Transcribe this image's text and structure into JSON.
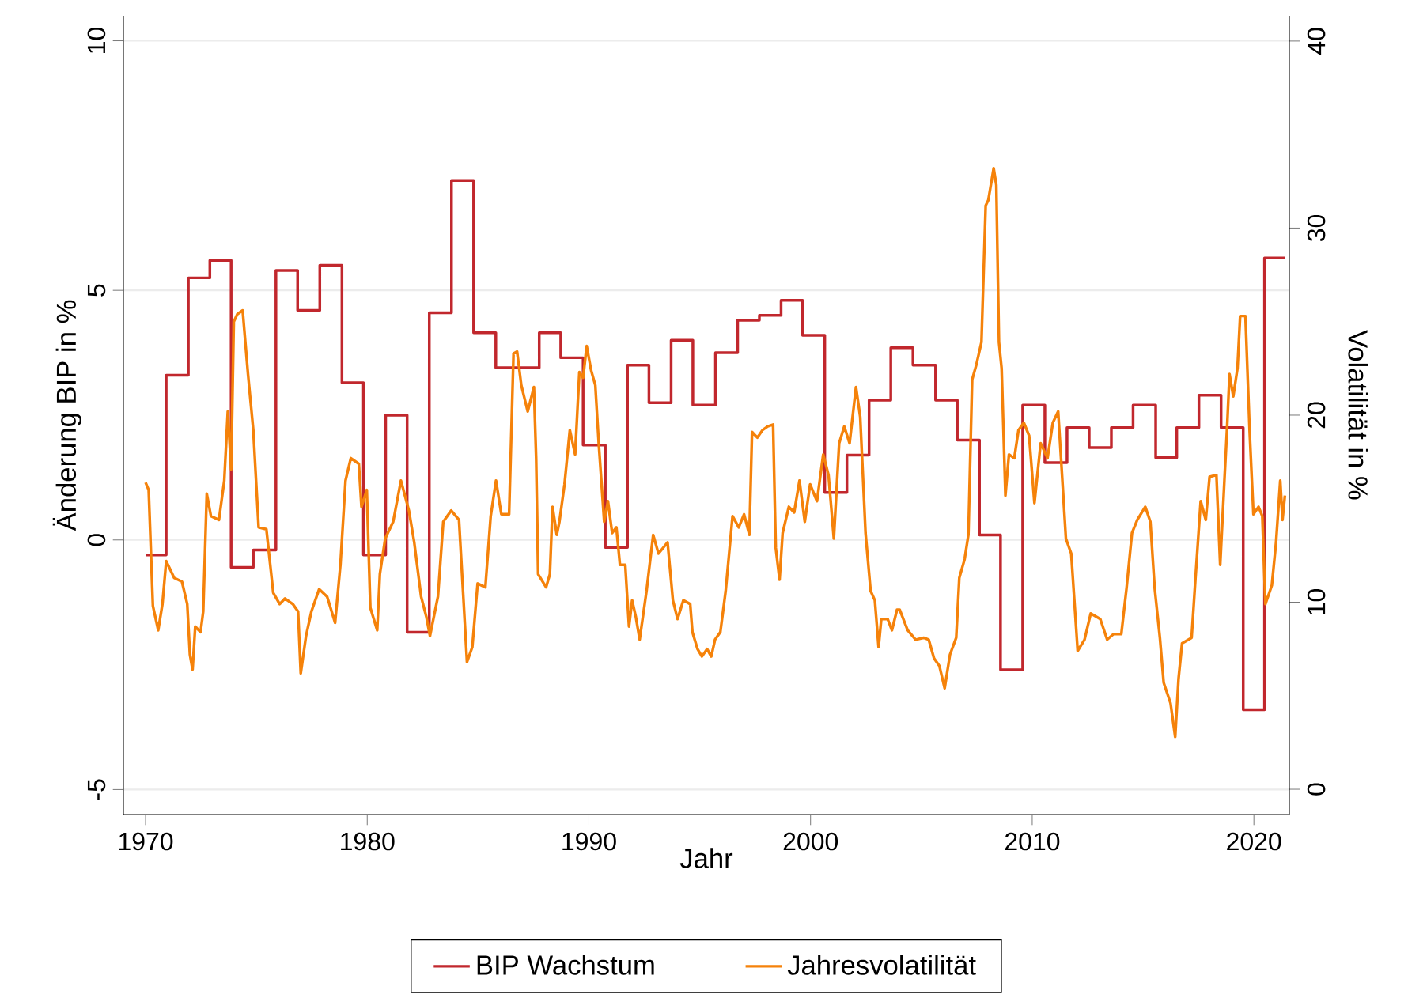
{
  "chart_data": {
    "type": "line",
    "xlabel": "Jahr",
    "ylabel": "Änderung BIP in %",
    "y2label": "Volatilität in %",
    "xlim": [
      1969,
      2021.6
    ],
    "ylim": [
      -5.5,
      10.5
    ],
    "y2lim": [
      -1.35,
      41.35
    ],
    "xticks": [
      1970,
      1980,
      1990,
      2000,
      2010,
      2020
    ],
    "yticks": [
      -5,
      0,
      5,
      10
    ],
    "y2ticks": [
      0,
      10,
      20,
      30,
      40
    ],
    "grid": "y",
    "legend": "bottom",
    "marker": "none",
    "line_style": "solid",
    "series": [
      {
        "name": "BIP Wachstum",
        "type": "step",
        "color": "#c1272d",
        "x": [
          1970.0,
          1970.93,
          1971.93,
          1972.9,
          1973.86,
          1974.86,
          1975.88,
          1976.86,
          1977.86,
          1978.86,
          1979.83,
          1980.83,
          1981.8,
          1982.8,
          1983.8,
          1984.8,
          1985.8,
          1987.76,
          1988.73,
          1989.74,
          1990.74,
          1991.74,
          1992.71,
          1993.71,
          1994.69,
          1995.71,
          1996.71,
          1997.69,
          1998.67,
          1999.64,
          2000.64,
          2001.64,
          2002.64,
          2003.62,
          2004.62,
          2005.64,
          2006.62,
          2007.62,
          2008.57,
          2009.57,
          2010.57,
          2011.57,
          2012.57,
          2013.57,
          2014.55,
          2015.57,
          2016.52,
          2017.52,
          2018.52,
          2019.52,
          2020.48,
          2021.41
        ],
        "values": [
          -0.3,
          3.3,
          5.25,
          5.6,
          -0.55,
          -0.2,
          5.4,
          4.6,
          5.5,
          3.15,
          -0.3,
          2.5,
          -1.85,
          4.55,
          7.2,
          4.15,
          3.45,
          4.15,
          3.65,
          1.9,
          -0.15,
          3.5,
          2.75,
          4.0,
          2.7,
          3.75,
          4.4,
          4.5,
          4.8,
          4.1,
          0.95,
          1.7,
          2.8,
          3.85,
          3.5,
          2.8,
          2.0,
          0.1,
          -2.6,
          2.7,
          1.55,
          2.25,
          1.85,
          2.25,
          2.7,
          1.65,
          2.25,
          2.9,
          2.25,
          -3.4,
          5.65,
          5.65
        ]
      },
      {
        "name": "Jahresvolatilität",
        "axis": "y2",
        "color": "#f5820a",
        "x": [
          1970.0,
          1970.14,
          1970.33,
          1970.57,
          1970.76,
          1970.93,
          1971.29,
          1971.64,
          1971.88,
          1972.0,
          1972.12,
          1972.24,
          1972.48,
          1972.6,
          1972.76,
          1972.95,
          1973.31,
          1973.55,
          1973.71,
          1973.86,
          1973.98,
          1974.14,
          1974.38,
          1974.62,
          1974.86,
          1975.1,
          1975.45,
          1975.76,
          1976.05,
          1976.29,
          1976.64,
          1976.88,
          1977.0,
          1977.24,
          1977.48,
          1977.83,
          1978.19,
          1978.55,
          1978.79,
          1979.02,
          1979.26,
          1979.62,
          1979.74,
          1979.98,
          1980.14,
          1980.45,
          1980.57,
          1980.81,
          1981.17,
          1981.52,
          1981.88,
          1982.12,
          1982.43,
          1982.67,
          1982.83,
          1983.19,
          1983.43,
          1983.79,
          1984.14,
          1984.5,
          1984.74,
          1984.98,
          1985.33,
          1985.57,
          1985.81,
          1986.05,
          1986.4,
          1986.6,
          1986.76,
          1986.95,
          1987.24,
          1987.52,
          1987.62,
          1987.71,
          1988.07,
          1988.24,
          1988.36,
          1988.55,
          1988.67,
          1988.9,
          1989.14,
          1989.38,
          1989.57,
          1989.74,
          1989.9,
          1990.1,
          1990.29,
          1990.45,
          1990.69,
          1990.86,
          1991.05,
          1991.24,
          1991.4,
          1991.64,
          1991.81,
          1991.95,
          1992.12,
          1992.29,
          1992.6,
          1992.9,
          1993.14,
          1993.55,
          1993.79,
          1994.0,
          1994.26,
          1994.57,
          1994.67,
          1994.9,
          1995.1,
          1995.33,
          1995.52,
          1995.69,
          1995.93,
          1996.17,
          1996.48,
          1996.76,
          1997.0,
          1997.24,
          1997.36,
          1997.6,
          1997.83,
          1998.07,
          1998.31,
          1998.43,
          1998.6,
          1998.74,
          1999.02,
          1999.26,
          1999.5,
          1999.74,
          1999.98,
          2000.29,
          2000.57,
          2000.81,
          2001.05,
          2001.29,
          2001.52,
          2001.76,
          2002.05,
          2002.24,
          2002.48,
          2002.71,
          2002.9,
          2003.07,
          2003.19,
          2003.48,
          2003.67,
          2003.9,
          2004.02,
          2004.38,
          2004.74,
          2005.1,
          2005.33,
          2005.57,
          2005.81,
          2006.05,
          2006.29,
          2006.57,
          2006.71,
          2006.95,
          2007.12,
          2007.29,
          2007.48,
          2007.71,
          2007.9,
          2008.02,
          2008.26,
          2008.38,
          2008.5,
          2008.62,
          2008.79,
          2008.95,
          2009.19,
          2009.38,
          2009.62,
          2009.86,
          2010.1,
          2010.38,
          2010.69,
          2010.93,
          2011.17,
          2011.52,
          2011.76,
          2012.05,
          2012.36,
          2012.64,
          2013.07,
          2013.38,
          2013.67,
          2014.02,
          2014.26,
          2014.5,
          2014.74,
          2015.1,
          2015.33,
          2015.52,
          2015.76,
          2015.93,
          2016.24,
          2016.45,
          2016.6,
          2016.76,
          2017.19,
          2017.36,
          2017.6,
          2017.83,
          2018.0,
          2018.31,
          2018.48,
          2018.67,
          2018.79,
          2018.9,
          2019.07,
          2019.26,
          2019.38,
          2019.62,
          2019.81,
          2019.98,
          2020.21,
          2020.38,
          2020.52,
          2020.81,
          2021.0,
          2021.19,
          2021.29,
          2021.4
        ],
        "values": [
          16.4,
          16.0,
          9.8,
          8.5,
          9.9,
          12.2,
          11.3,
          11.1,
          9.9,
          7.2,
          6.4,
          8.7,
          8.4,
          9.5,
          15.8,
          14.6,
          14.4,
          16.5,
          20.2,
          17.1,
          25.0,
          25.4,
          25.6,
          22.2,
          19.2,
          14.0,
          13.9,
          10.5,
          9.9,
          10.2,
          9.9,
          9.5,
          6.2,
          8.2,
          9.5,
          10.7,
          10.3,
          8.9,
          12.0,
          16.5,
          17.7,
          17.4,
          15.1,
          16.0,
          9.7,
          8.5,
          11.5,
          13.4,
          14.3,
          16.5,
          14.9,
          13.2,
          10.3,
          9.2,
          8.2,
          10.3,
          14.3,
          14.9,
          14.4,
          6.8,
          7.6,
          11.0,
          10.8,
          14.6,
          16.5,
          14.7,
          14.7,
          23.3,
          23.4,
          21.6,
          20.2,
          21.5,
          17.7,
          11.5,
          10.8,
          11.5,
          15.1,
          13.6,
          14.3,
          16.3,
          19.2,
          17.9,
          22.3,
          22.0,
          23.7,
          22.4,
          21.6,
          18.4,
          14.3,
          15.4,
          13.7,
          14.0,
          12.0,
          12.0,
          8.7,
          10.1,
          9.2,
          8.0,
          10.6,
          13.6,
          12.6,
          13.2,
          10.1,
          9.1,
          10.1,
          9.9,
          8.4,
          7.5,
          7.1,
          7.5,
          7.1,
          8.0,
          8.4,
          10.6,
          14.6,
          14.0,
          14.7,
          13.6,
          19.1,
          18.8,
          19.2,
          19.4,
          19.5,
          12.9,
          11.2,
          13.7,
          15.1,
          14.8,
          16.5,
          14.3,
          16.3,
          15.4,
          17.9,
          16.8,
          13.4,
          18.5,
          19.4,
          18.5,
          21.5,
          19.9,
          13.7,
          10.6,
          10.1,
          7.6,
          9.1,
          9.1,
          8.5,
          9.6,
          9.6,
          8.5,
          8.0,
          8.1,
          8.0,
          7.0,
          6.6,
          5.4,
          7.2,
          8.1,
          11.3,
          12.3,
          13.6,
          21.9,
          22.7,
          23.9,
          31.2,
          31.5,
          33.2,
          32.3,
          23.9,
          22.5,
          15.7,
          17.9,
          17.7,
          19.2,
          19.6,
          18.9,
          15.3,
          18.5,
          17.7,
          19.6,
          20.2,
          13.4,
          12.6,
          7.4,
          8.0,
          9.4,
          9.1,
          8.0,
          8.3,
          8.3,
          10.8,
          13.7,
          14.4,
          15.1,
          14.3,
          10.8,
          8.1,
          5.7,
          4.6,
          2.8,
          5.9,
          7.8,
          8.1,
          11.2,
          15.4,
          14.4,
          16.7,
          16.8,
          12.0,
          16.5,
          19.3,
          22.2,
          21.0,
          22.5,
          25.3,
          25.3,
          19.1,
          14.7,
          15.1,
          14.6,
          9.9,
          10.9,
          13.2,
          16.5,
          14.4,
          15.7
        ]
      }
    ]
  }
}
